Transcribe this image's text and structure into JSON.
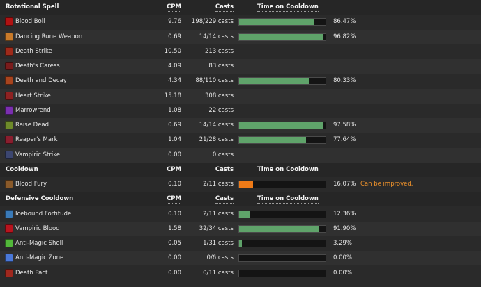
{
  "colors": {
    "bar_good": "#5fa36a",
    "bar_warn": "#ee7a17",
    "note": "#f0932b",
    "row_alt": "#303030",
    "row_base": "#2a2a2a"
  },
  "sections": [
    {
      "header": {
        "name": "Rotational Spell",
        "cpm": "CPM",
        "casts": "Casts",
        "time": "Time on Cooldown"
      },
      "rows": [
        {
          "name": "Blood Boil",
          "icon": "blood-boil-icon",
          "icon_color": "#b01212",
          "cpm": "9.76",
          "casts": "198/229 casts",
          "cooldown_fraction": 0.8647,
          "pct": "86.47%",
          "note": ""
        },
        {
          "name": "Dancing Rune Weapon",
          "icon": "dancing-rune-weapon-icon",
          "icon_color": "#c87a2a",
          "cpm": "0.69",
          "casts": "14/14 casts",
          "cooldown_fraction": 0.9682,
          "pct": "96.82%",
          "note": ""
        },
        {
          "name": "Death Strike",
          "icon": "death-strike-icon",
          "icon_color": "#9e2a1a",
          "cpm": "10.50",
          "casts": "213 casts",
          "cooldown_fraction": null,
          "pct": "",
          "note": ""
        },
        {
          "name": "Death's Caress",
          "icon": "deaths-caress-icon",
          "icon_color": "#7a1c1c",
          "cpm": "4.09",
          "casts": "83 casts",
          "cooldown_fraction": null,
          "pct": "",
          "note": ""
        },
        {
          "name": "Death and Decay",
          "icon": "death-and-decay-icon",
          "icon_color": "#a8441e",
          "cpm": "4.34",
          "casts": "88/110 casts",
          "cooldown_fraction": 0.8033,
          "pct": "80.33%",
          "note": ""
        },
        {
          "name": "Heart Strike",
          "icon": "heart-strike-icon",
          "icon_color": "#8e2222",
          "cpm": "15.18",
          "casts": "308 casts",
          "cooldown_fraction": null,
          "pct": "",
          "note": ""
        },
        {
          "name": "Marrowrend",
          "icon": "marrowrend-icon",
          "icon_color": "#7b2fb0",
          "cpm": "1.08",
          "casts": "22 casts",
          "cooldown_fraction": null,
          "pct": "",
          "note": ""
        },
        {
          "name": "Raise Dead",
          "icon": "raise-dead-icon",
          "icon_color": "#6e8a2a",
          "cpm": "0.69",
          "casts": "14/14 casts",
          "cooldown_fraction": 0.9758,
          "pct": "97.58%",
          "note": ""
        },
        {
          "name": "Reaper's Mark",
          "icon": "reapers-mark-icon",
          "icon_color": "#8a1e2e",
          "cpm": "1.04",
          "casts": "21/28 casts",
          "cooldown_fraction": 0.7764,
          "pct": "77.64%",
          "note": ""
        },
        {
          "name": "Vampiric Strike",
          "icon": "vampiric-strike-icon",
          "icon_color": "#3c4670",
          "cpm": "0.00",
          "casts": "0 casts",
          "cooldown_fraction": null,
          "pct": "",
          "note": ""
        }
      ]
    },
    {
      "header": {
        "name": "Cooldown",
        "cpm": "CPM",
        "casts": "Casts",
        "time": "Time on Cooldown"
      },
      "rows": [
        {
          "name": "Blood Fury",
          "icon": "blood-fury-icon",
          "icon_color": "#8a5a2a",
          "cpm": "0.10",
          "casts": "2/11 casts",
          "cooldown_fraction": 0.1607,
          "pct": "16.07%",
          "note": "Can be improved.",
          "bar_warn": true
        }
      ]
    },
    {
      "header": {
        "name": "Defensive Cooldown",
        "cpm": "CPM",
        "casts": "Casts",
        "time": "Time on Cooldown"
      },
      "rows": [
        {
          "name": "Icebound Fortitude",
          "icon": "icebound-fortitude-icon",
          "icon_color": "#3a7ab8",
          "cpm": "0.10",
          "casts": "2/11 casts",
          "cooldown_fraction": 0.1236,
          "pct": "12.36%",
          "note": ""
        },
        {
          "name": "Vampiric Blood",
          "icon": "vampiric-blood-icon",
          "icon_color": "#b8141e",
          "cpm": "1.58",
          "casts": "32/34 casts",
          "cooldown_fraction": 0.919,
          "pct": "91.90%",
          "note": ""
        },
        {
          "name": "Anti-Magic Shell",
          "icon": "anti-magic-shell-icon",
          "icon_color": "#52b83a",
          "cpm": "0.05",
          "casts": "1/31 casts",
          "cooldown_fraction": 0.0329,
          "pct": "3.29%",
          "note": ""
        },
        {
          "name": "Anti-Magic Zone",
          "icon": "anti-magic-zone-icon",
          "icon_color": "#4a78d8",
          "cpm": "0.00",
          "casts": "0/6 casts",
          "cooldown_fraction": 0.0,
          "pct": "0.00%",
          "note": ""
        },
        {
          "name": "Death Pact",
          "icon": "death-pact-icon",
          "icon_color": "#a0281e",
          "cpm": "0.00",
          "casts": "0/11 casts",
          "cooldown_fraction": 0.0,
          "pct": "0.00%",
          "note": ""
        }
      ]
    }
  ]
}
